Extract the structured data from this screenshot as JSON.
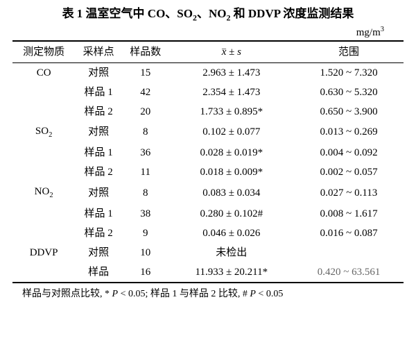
{
  "title_prefix": "表 1  温室空气中 CO、SO",
  "title_mid": "、NO",
  "title_suffix": " 和 DDVP 浓度监测结果",
  "unit": "mg/m",
  "unit_exp": "3",
  "headers": {
    "substance": "测定物质",
    "site": "采样点",
    "n": "样品数",
    "stat_x": "x",
    "stat_pm": " ± ",
    "stat_s": "s",
    "range": "范围"
  },
  "rows": [
    {
      "sub": "CO",
      "site": "对照",
      "n": "15",
      "stat": "2.963 ± 1.473",
      "range": "1.520 ~ 7.320"
    },
    {
      "sub": "",
      "site": "样品 1",
      "n": "42",
      "stat": "2.354 ± 1.473",
      "range": "0.630 ~ 5.320"
    },
    {
      "sub": "",
      "site": "样品 2",
      "n": "20",
      "stat": "1.733 ± 0.895*",
      "range": "0.650 ~ 3.900"
    },
    {
      "sub": "SO2",
      "site": "对照",
      "n": "8",
      "stat": "0.102 ± 0.077",
      "range": "0.013 ~ 0.269"
    },
    {
      "sub": "",
      "site": "样品 1",
      "n": "36",
      "stat": "0.028 ± 0.019*",
      "range": "0.004 ~ 0.092"
    },
    {
      "sub": "",
      "site": "样品 2",
      "n": "11",
      "stat": "0.018 ± 0.009*",
      "range": "0.002 ~ 0.057"
    },
    {
      "sub": "NO2",
      "site": "对照",
      "n": "8",
      "stat": "0.083 ± 0.034",
      "range": "0.027 ~ 0.113"
    },
    {
      "sub": "",
      "site": "样品 1",
      "n": "38",
      "stat": "0.280 ± 0.102#",
      "range": "0.008 ~ 1.617"
    },
    {
      "sub": "",
      "site": "样品 2",
      "n": "9",
      "stat": "0.046 ± 0.026",
      "range": "0.016 ~ 0.087"
    },
    {
      "sub": "DDVP",
      "site": "对照",
      "n": "10",
      "stat": "未检出",
      "range": ""
    },
    {
      "sub": "",
      "site": "样品",
      "n": "16",
      "stat": "11.933 ± 20.211*",
      "range": "0.420 ~ 63.561"
    }
  ],
  "footnote_a": "样品与对照点比较, * ",
  "footnote_b": "P",
  "footnote_c": " < 0.05; 样品 1 与样品 2 比较, # ",
  "footnote_d": "P",
  "footnote_e": " < 0.05"
}
